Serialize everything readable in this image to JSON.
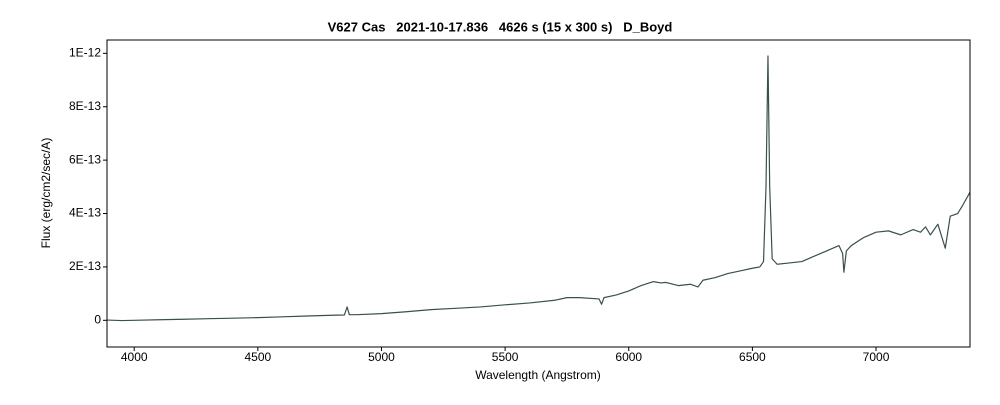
{
  "chart_data": {
    "type": "line",
    "title": "V627 Cas   2021-10-17.836   4626 s (15 x 300 s)   D_Boyd",
    "xlabel": "Wavelength (Angstrom)",
    "ylabel": "Flux (erg/cm2/sec/A)",
    "x": [
      3890,
      3950,
      4000,
      4100,
      4200,
      4300,
      4400,
      4500,
      4600,
      4700,
      4800,
      4850,
      4861,
      4870,
      4900,
      5000,
      5100,
      5200,
      5300,
      5400,
      5500,
      5600,
      5700,
      5750,
      5800,
      5880,
      5890,
      5900,
      5950,
      6000,
      6050,
      6100,
      6130,
      6150,
      6200,
      6250,
      6280,
      6300,
      6350,
      6400,
      6450,
      6500,
      6530,
      6545,
      6555,
      6563,
      6570,
      6580,
      6600,
      6650,
      6700,
      6750,
      6800,
      6850,
      6865,
      6870,
      6880,
      6900,
      6950,
      7000,
      7050,
      7100,
      7150,
      7180,
      7200,
      7220,
      7250,
      7280,
      7300,
      7330,
      7350,
      7380
    ],
    "series": [
      {
        "name": "V627 Cas",
        "color": "#3a4f4f",
        "values": [
          1e-15,
          -1e-15,
          0,
          2e-15,
          4e-15,
          6e-15,
          8e-15,
          1e-14,
          1.3e-14,
          1.6e-14,
          1.9e-14,
          2e-14,
          5e-14,
          2.1e-14,
          2.1e-14,
          2.5e-14,
          3.2e-14,
          4e-14,
          4.5e-14,
          5e-14,
          5.8e-14,
          6.5e-14,
          7.5e-14,
          8.5e-14,
          8.5e-14,
          8e-14,
          6e-14,
          8.5e-14,
          9.5e-14,
          1.1e-13,
          1.3e-13,
          1.45e-13,
          1.4e-13,
          1.42e-13,
          1.3e-13,
          1.35e-13,
          1.25e-13,
          1.5e-13,
          1.6e-13,
          1.75e-13,
          1.85e-13,
          1.95e-13,
          2e-13,
          2.2e-13,
          5e-13,
          9.9e-13,
          5e-13,
          2.3e-13,
          2.1e-13,
          2.15e-13,
          2.2e-13,
          2.4e-13,
          2.6e-13,
          2.8e-13,
          2.5e-13,
          1.8e-13,
          2.6e-13,
          2.8e-13,
          3.1e-13,
          3.3e-13,
          3.35e-13,
          3.2e-13,
          3.4e-13,
          3.3e-13,
          3.5e-13,
          3.2e-13,
          3.6e-13,
          2.7e-13,
          3.9e-13,
          4e-13,
          4.3e-13,
          4.8e-13
        ]
      }
    ],
    "xlim": [
      3890,
      7380
    ],
    "xticks": [
      4000,
      4500,
      5000,
      5500,
      6000,
      6500,
      7000
    ],
    "ylim": [
      -1e-13,
      1.05e-12
    ],
    "yticks": [
      0,
      {
        "value": 2e-13,
        "label": "2E-13"
      },
      {
        "value": 4e-13,
        "label": "4E-13"
      },
      {
        "value": 6e-13,
        "label": "6E-13"
      },
      {
        "value": 8e-13,
        "label": "8E-13"
      },
      {
        "value": 1e-12,
        "label": "1E-12"
      }
    ],
    "grid": false
  }
}
